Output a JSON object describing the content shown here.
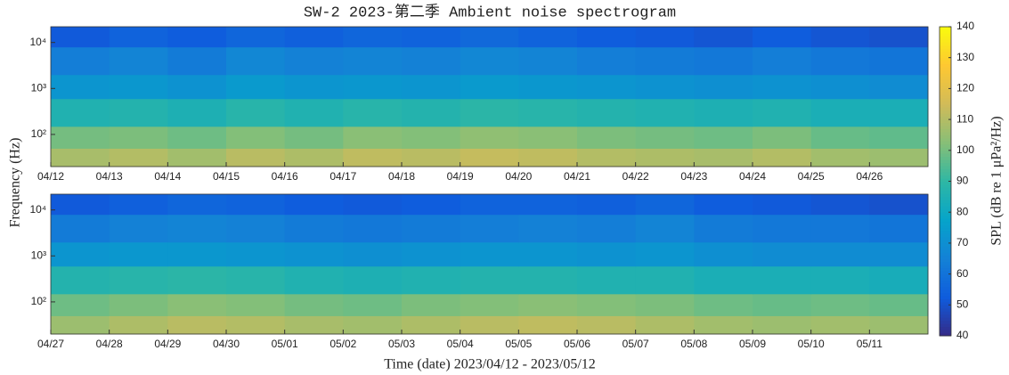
{
  "chart_data": {
    "type": "heatmap",
    "title": "SW-2 2023-第二季 Ambient noise spectrogram",
    "ylabel": "Frequency (Hz)",
    "xlabel": "Time (date) 2023/04/12 - 2023/05/12",
    "colorbar_label": "SPL (dB re 1 μPa²/Hz)",
    "clim": [
      40,
      140
    ],
    "cticks": [
      40,
      50,
      60,
      70,
      80,
      90,
      100,
      110,
      120,
      130,
      140
    ],
    "colormap": [
      "#352a87",
      "#0f5cdd",
      "#1481d6",
      "#06a4ca",
      "#2eb7a4",
      "#87bf77",
      "#d1bb59",
      "#fec832",
      "#f9fb0e"
    ],
    "log_y": true,
    "panels": [
      {
        "categories": [
          "04/12",
          "04/13",
          "04/14",
          "04/15",
          "04/16",
          "04/17",
          "04/18",
          "04/19",
          "04/20",
          "04/21",
          "04/22",
          "04/23",
          "04/24",
          "04/25",
          "04/26"
        ],
        "ylim": [
          20,
          22000
        ],
        "yticks": [
          {
            "value": 100,
            "label": "10²"
          },
          {
            "value": 1000,
            "label": "10³"
          },
          {
            "value": 10000,
            "label": "10⁴"
          }
        ],
        "yedges": [
          20,
          50,
          150,
          600,
          2000,
          8000,
          22000
        ],
        "z": [
          [
            108,
            110,
            107,
            111,
            109,
            112,
            111,
            113,
            112,
            110,
            109,
            108,
            110,
            107,
            106
          ],
          [
            100,
            101,
            99,
            102,
            100,
            103,
            102,
            104,
            103,
            101,
            100,
            99,
            101,
            98,
            97
          ],
          [
            86,
            87,
            85,
            88,
            86,
            88,
            87,
            89,
            88,
            87,
            86,
            85,
            86,
            84,
            84
          ],
          [
            72,
            73,
            71,
            74,
            72,
            73,
            72,
            74,
            73,
            72,
            71,
            70,
            71,
            70,
            69
          ],
          [
            64,
            66,
            63,
            67,
            65,
            66,
            65,
            67,
            66,
            64,
            63,
            62,
            64,
            62,
            61
          ],
          [
            52,
            55,
            53,
            56,
            54,
            56,
            55,
            57,
            55,
            53,
            52,
            51,
            53,
            51,
            50
          ]
        ]
      },
      {
        "categories": [
          "04/27",
          "04/28",
          "04/29",
          "04/30",
          "05/01",
          "05/02",
          "05/03",
          "05/04",
          "05/05",
          "05/06",
          "05/07",
          "05/08",
          "05/09",
          "05/10",
          "05/11"
        ],
        "ylim": [
          20,
          22000
        ],
        "yticks": [
          {
            "value": 100,
            "label": "10²"
          },
          {
            "value": 1000,
            "label": "10³"
          },
          {
            "value": 10000,
            "label": "10⁴"
          }
        ],
        "yedges": [
          20,
          50,
          150,
          600,
          2000,
          8000,
          22000
        ],
        "z": [
          [
            106,
            109,
            111,
            110,
            108,
            107,
            109,
            111,
            112,
            111,
            109,
            107,
            106,
            107,
            106
          ],
          [
            99,
            101,
            103,
            102,
            100,
            99,
            101,
            102,
            103,
            102,
            101,
            99,
            98,
            99,
            98
          ],
          [
            87,
            88,
            89,
            88,
            86,
            85,
            86,
            87,
            87,
            86,
            86,
            84,
            84,
            84,
            83
          ],
          [
            72,
            73,
            73,
            72,
            71,
            70,
            71,
            72,
            72,
            71,
            72,
            70,
            69,
            69,
            69
          ],
          [
            63,
            65,
            66,
            65,
            63,
            62,
            63,
            64,
            65,
            64,
            66,
            63,
            62,
            62,
            61
          ],
          [
            52,
            54,
            56,
            55,
            53,
            52,
            53,
            55,
            55,
            54,
            56,
            53,
            52,
            51,
            50
          ]
        ]
      }
    ]
  }
}
